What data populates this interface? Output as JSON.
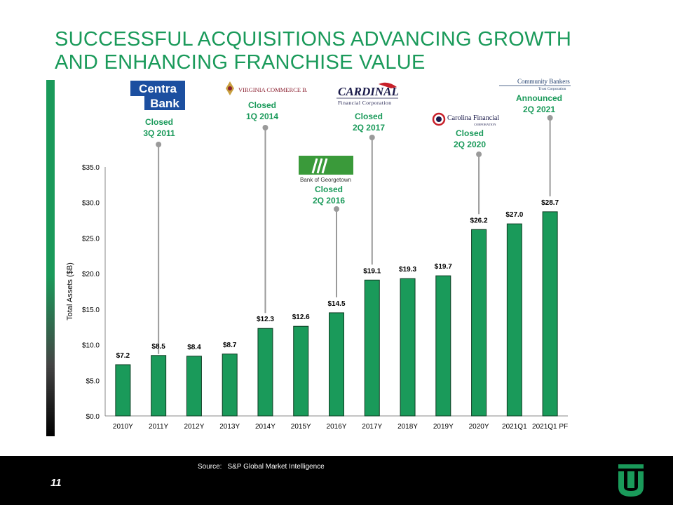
{
  "slide": {
    "title": "SUCCESSFUL ACQUISITIONS ADVANCING GROWTH AND ENHANCING FRANCHISE VALUE",
    "page_number": "11",
    "source_label": "Source:",
    "source_text": "S&P Global Market Intelligence",
    "accent_color": "#1a9a5a"
  },
  "acquisitions": [
    {
      "logo": "Centra Bank",
      "logo_lines": [
        "Centra",
        "Bank"
      ],
      "status": "Closed",
      "period": "3Q 2011",
      "category": "2011Y"
    },
    {
      "logo": "Virginia Commerce Bank",
      "logo_lines": [
        "VIRGINIA COMMERCE BANK"
      ],
      "status": "Closed",
      "period": "1Q 2014",
      "category": "2014Y"
    },
    {
      "logo": "Bank of Georgetown",
      "logo_lines": [
        "Bank of Georgetown"
      ],
      "status": "Closed",
      "period": "2Q 2016",
      "category": "2016Y"
    },
    {
      "logo": "Cardinal Financial Corporation",
      "logo_lines": [
        "CARDINAL",
        "Financial Corporation"
      ],
      "status": "Closed",
      "period": "2Q 2017",
      "category": "2017Y"
    },
    {
      "logo": "Carolina Financial Corporation",
      "logo_lines": [
        "Carolina Financial",
        "CORPORATION"
      ],
      "status": "Closed",
      "period": "2Q 2020",
      "category": "2020Y"
    },
    {
      "logo": "Community Bankers Trust Corporation",
      "logo_lines": [
        "Community Bankers",
        "Trust Corporation"
      ],
      "status": "Announced",
      "period": "2Q 2021",
      "category": "2021Q1 PF"
    }
  ],
  "chart_data": {
    "type": "bar",
    "title": "",
    "xlabel": "",
    "ylabel": "Total Assets ($B)",
    "categories": [
      "2010Y",
      "2011Y",
      "2012Y",
      "2013Y",
      "2014Y",
      "2015Y",
      "2016Y",
      "2017Y",
      "2018Y",
      "2019Y",
      "2020Y",
      "2021Q1",
      "2021Q1 PF"
    ],
    "values": [
      7.2,
      8.5,
      8.4,
      8.7,
      12.3,
      12.6,
      14.5,
      19.1,
      19.3,
      19.7,
      26.2,
      27.0,
      28.7
    ],
    "value_labels": [
      "$7.2",
      "$8.5",
      "$8.4",
      "$8.7",
      "$12.3",
      "$12.6",
      "$14.5",
      "$19.1",
      "$19.3",
      "$19.7",
      "$26.2",
      "$27.0",
      "$28.7"
    ],
    "yticks": [
      0,
      5,
      10,
      15,
      20,
      25,
      30,
      35
    ],
    "ytick_labels": [
      "$0.0",
      "$5.0",
      "$10.0",
      "$15.0",
      "$20.0",
      "$25.0",
      "$30.0",
      "$35.0"
    ],
    "ylim": [
      0,
      35
    ],
    "grid": false,
    "bar_color": "#1a9a5a",
    "bar_edge_color": "#0d3b22"
  }
}
